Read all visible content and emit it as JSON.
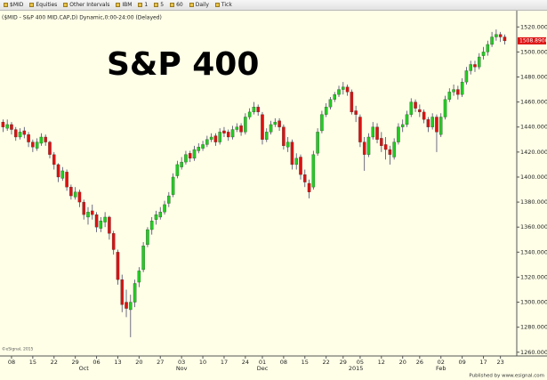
{
  "toolbar": {
    "items": [
      "$MID",
      "Equities",
      "Other Intervals",
      "IBM",
      "1",
      "5",
      "60",
      "Daily",
      "Tick"
    ]
  },
  "footer": "Published by www.esignal.com",
  "chart_data": {
    "type": "candlestick",
    "title": "($MID - S&P 400 MID.CAP,D) Dynamic,0:00-24:00 (Delayed)",
    "annotation": "S&P 400",
    "watermark": "©eSignal, 2015",
    "up_color": "#22cc22",
    "down_color": "#dd1111",
    "wick_color": "#4a4a66",
    "background": "#ffffe8",
    "last_price": {
      "value": 1508.89,
      "label": "1508.8900"
    },
    "categories": [
      null,
      null,
      "08",
      null,
      null,
      null,
      null,
      "15",
      null,
      null,
      null,
      null,
      "22",
      null,
      null,
      null,
      null,
      "29",
      null,
      null,
      null,
      null,
      "06",
      null,
      null,
      null,
      null,
      "13",
      null,
      null,
      null,
      null,
      "20",
      null,
      null,
      null,
      null,
      "27",
      null,
      null,
      null,
      null,
      "03",
      null,
      null,
      null,
      null,
      "10",
      null,
      null,
      null,
      null,
      "17",
      null,
      null,
      null,
      null,
      "24",
      null,
      null,
      null,
      "01",
      null,
      null,
      null,
      null,
      "08",
      null,
      null,
      null,
      null,
      "15",
      null,
      null,
      null,
      null,
      "22",
      null,
      null,
      null,
      "29",
      null,
      null,
      null,
      "05",
      null,
      null,
      null,
      null,
      "12",
      null,
      null,
      null,
      null,
      "20",
      null,
      null,
      null,
      "26",
      null,
      null,
      null,
      null,
      "02",
      null,
      null,
      null,
      null,
      "09",
      null,
      null,
      null,
      null,
      "17",
      null,
      null,
      null,
      "23",
      null
    ],
    "months": [
      null,
      null,
      null,
      null,
      null,
      null,
      null,
      null,
      null,
      null,
      null,
      null,
      null,
      null,
      null,
      null,
      null,
      null,
      null,
      "Oct",
      null,
      null,
      null,
      null,
      null,
      null,
      null,
      null,
      null,
      null,
      null,
      null,
      null,
      null,
      null,
      null,
      null,
      null,
      null,
      null,
      null,
      null,
      "Nov",
      null,
      null,
      null,
      null,
      null,
      null,
      null,
      null,
      null,
      null,
      null,
      null,
      null,
      null,
      null,
      null,
      null,
      null,
      "Dec",
      null,
      null,
      null,
      null,
      null,
      null,
      null,
      null,
      null,
      null,
      null,
      null,
      null,
      null,
      null,
      null,
      null,
      null,
      null,
      null,
      null,
      "2015",
      null,
      null,
      null,
      null,
      null,
      null,
      null,
      null,
      null,
      null,
      null,
      null,
      null,
      null,
      null,
      null,
      null,
      null,
      null,
      "Feb",
      null,
      null,
      null,
      null,
      null,
      null,
      null,
      null,
      null,
      null,
      null,
      null,
      null,
      null,
      null
    ],
    "ohlc": [
      [
        1444,
        1446,
        1436,
        1440
      ],
      [
        1439,
        1446,
        1437,
        1442
      ],
      [
        1442,
        1444,
        1434,
        1438
      ],
      [
        1438,
        1440,
        1429,
        1432
      ],
      [
        1432,
        1439,
        1430,
        1436
      ],
      [
        1437,
        1440,
        1431,
        1434
      ],
      [
        1434,
        1436,
        1424,
        1428
      ],
      [
        1428,
        1430,
        1420,
        1424
      ],
      [
        1423,
        1431,
        1421,
        1428
      ],
      [
        1427,
        1435,
        1425,
        1432
      ],
      [
        1432,
        1434,
        1425,
        1428
      ],
      [
        1428,
        1429,
        1415,
        1418
      ],
      [
        1418,
        1420,
        1406,
        1410
      ],
      [
        1410,
        1411,
        1396,
        1400
      ],
      [
        1399,
        1408,
        1397,
        1405
      ],
      [
        1404,
        1406,
        1389,
        1392
      ],
      [
        1392,
        1394,
        1382,
        1385
      ],
      [
        1384,
        1392,
        1382,
        1388
      ],
      [
        1388,
        1390,
        1376,
        1380
      ],
      [
        1380,
        1382,
        1366,
        1370
      ],
      [
        1368,
        1376,
        1362,
        1372
      ],
      [
        1373,
        1378,
        1366,
        1370
      ],
      [
        1370,
        1372,
        1356,
        1360
      ],
      [
        1359,
        1368,
        1356,
        1365
      ],
      [
        1364,
        1372,
        1360,
        1368
      ],
      [
        1368,
        1369,
        1350,
        1355
      ],
      [
        1355,
        1357,
        1338,
        1342
      ],
      [
        1340,
        1342,
        1314,
        1318
      ],
      [
        1318,
        1322,
        1292,
        1298
      ],
      [
        1300,
        1310,
        1288,
        1295
      ],
      [
        1294,
        1306,
        1272,
        1300
      ],
      [
        1300,
        1318,
        1296,
        1315
      ],
      [
        1316,
        1328,
        1312,
        1325
      ],
      [
        1326,
        1348,
        1324,
        1345
      ],
      [
        1346,
        1360,
        1344,
        1358
      ],
      [
        1358,
        1368,
        1354,
        1365
      ],
      [
        1366,
        1373,
        1362,
        1370
      ],
      [
        1368,
        1376,
        1366,
        1372
      ],
      [
        1372,
        1381,
        1370,
        1378
      ],
      [
        1379,
        1388,
        1376,
        1385
      ],
      [
        1386,
        1403,
        1384,
        1400
      ],
      [
        1401,
        1413,
        1399,
        1410
      ],
      [
        1408,
        1416,
        1406,
        1412
      ],
      [
        1412,
        1421,
        1410,
        1418
      ],
      [
        1419,
        1421,
        1412,
        1415
      ],
      [
        1415,
        1425,
        1413,
        1422
      ],
      [
        1421,
        1427,
        1419,
        1424
      ],
      [
        1423,
        1429,
        1421,
        1426
      ],
      [
        1426,
        1433,
        1424,
        1430
      ],
      [
        1430,
        1435,
        1428,
        1432
      ],
      [
        1433,
        1435,
        1425,
        1428
      ],
      [
        1428,
        1439,
        1426,
        1436
      ],
      [
        1437,
        1440,
        1432,
        1435
      ],
      [
        1436,
        1438,
        1429,
        1432
      ],
      [
        1432,
        1441,
        1430,
        1438
      ],
      [
        1438,
        1443,
        1436,
        1440
      ],
      [
        1441,
        1443,
        1433,
        1436
      ],
      [
        1436,
        1451,
        1434,
        1448
      ],
      [
        1448,
        1455,
        1446,
        1452
      ],
      [
        1452,
        1460,
        1450,
        1456
      ],
      [
        1456,
        1458,
        1449,
        1452
      ],
      [
        1450,
        1452,
        1426,
        1430
      ],
      [
        1430,
        1439,
        1428,
        1436
      ],
      [
        1436,
        1445,
        1434,
        1442
      ],
      [
        1442,
        1447,
        1440,
        1444
      ],
      [
        1445,
        1447,
        1437,
        1440
      ],
      [
        1440,
        1442,
        1422,
        1425
      ],
      [
        1424,
        1432,
        1420,
        1428
      ],
      [
        1428,
        1430,
        1406,
        1410
      ],
      [
        1410,
        1419,
        1406,
        1415
      ],
      [
        1416,
        1418,
        1398,
        1402
      ],
      [
        1402,
        1406,
        1392,
        1396
      ],
      [
        1395,
        1398,
        1383,
        1388
      ],
      [
        1392,
        1421,
        1390,
        1418
      ],
      [
        1419,
        1439,
        1417,
        1436
      ],
      [
        1437,
        1453,
        1435,
        1450
      ],
      [
        1450,
        1459,
        1448,
        1456
      ],
      [
        1456,
        1464,
        1454,
        1462
      ],
      [
        1462,
        1468,
        1460,
        1466
      ],
      [
        1466,
        1473,
        1464,
        1470
      ],
      [
        1470,
        1476,
        1466,
        1472
      ],
      [
        1472,
        1474,
        1465,
        1468
      ],
      [
        1468,
        1470,
        1450,
        1452
      ],
      [
        1453,
        1457,
        1444,
        1450
      ],
      [
        1448,
        1450,
        1424,
        1428
      ],
      [
        1428,
        1432,
        1405,
        1418
      ],
      [
        1418,
        1435,
        1416,
        1432
      ],
      [
        1432,
        1444,
        1430,
        1440
      ],
      [
        1440,
        1443,
        1427,
        1430
      ],
      [
        1431,
        1436,
        1420,
        1425
      ],
      [
        1426,
        1432,
        1414,
        1422
      ],
      [
        1422,
        1425,
        1410,
        1418
      ],
      [
        1416,
        1431,
        1414,
        1428
      ],
      [
        1428,
        1443,
        1426,
        1440
      ],
      [
        1440,
        1446,
        1436,
        1442
      ],
      [
        1442,
        1453,
        1440,
        1450
      ],
      [
        1450,
        1463,
        1448,
        1460
      ],
      [
        1460,
        1462,
        1452,
        1455
      ],
      [
        1454,
        1458,
        1448,
        1452
      ],
      [
        1452,
        1454,
        1443,
        1446
      ],
      [
        1446,
        1448,
        1436,
        1440
      ],
      [
        1440,
        1451,
        1438,
        1448
      ],
      [
        1448,
        1450,
        1420,
        1436
      ],
      [
        1434,
        1451,
        1432,
        1448
      ],
      [
        1448,
        1465,
        1446,
        1462
      ],
      [
        1462,
        1471,
        1460,
        1468
      ],
      [
        1468,
        1474,
        1465,
        1470
      ],
      [
        1470,
        1473,
        1462,
        1466
      ],
      [
        1466,
        1479,
        1464,
        1476
      ],
      [
        1476,
        1488,
        1474,
        1485
      ],
      [
        1485,
        1493,
        1482,
        1490
      ],
      [
        1490,
        1493,
        1484,
        1488
      ],
      [
        1488,
        1499,
        1486,
        1496
      ],
      [
        1497,
        1504,
        1494,
        1500
      ],
      [
        1500,
        1509,
        1497,
        1506
      ],
      [
        1506,
        1516,
        1504,
        1512
      ],
      [
        1512,
        1518,
        1509,
        1514
      ],
      [
        1514,
        1516,
        1508,
        1512
      ],
      [
        1512,
        1514,
        1506,
        1508.89
      ]
    ],
    "ylim": [
      1257,
      1533
    ],
    "yticks": [
      {
        "value": 1260,
        "label": "1260.0000"
      },
      {
        "value": 1280,
        "label": "1280.0000"
      },
      {
        "value": 1300,
        "label": "1300.0000"
      },
      {
        "value": 1320,
        "label": "1320.0000"
      },
      {
        "value": 1340,
        "label": "1340.0000"
      },
      {
        "value": 1360,
        "label": "1360.0000"
      },
      {
        "value": 1380,
        "label": "1380.0000"
      },
      {
        "value": 1400,
        "label": "1400.0000"
      },
      {
        "value": 1420,
        "label": "1420.0000"
      },
      {
        "value": 1440,
        "label": "1440.0000"
      },
      {
        "value": 1460,
        "label": "1460.0000"
      },
      {
        "value": 1480,
        "label": "1480.0000"
      },
      {
        "value": 1500,
        "label": "1500.0000"
      },
      {
        "value": 1520,
        "label": "1520.0000"
      }
    ]
  }
}
